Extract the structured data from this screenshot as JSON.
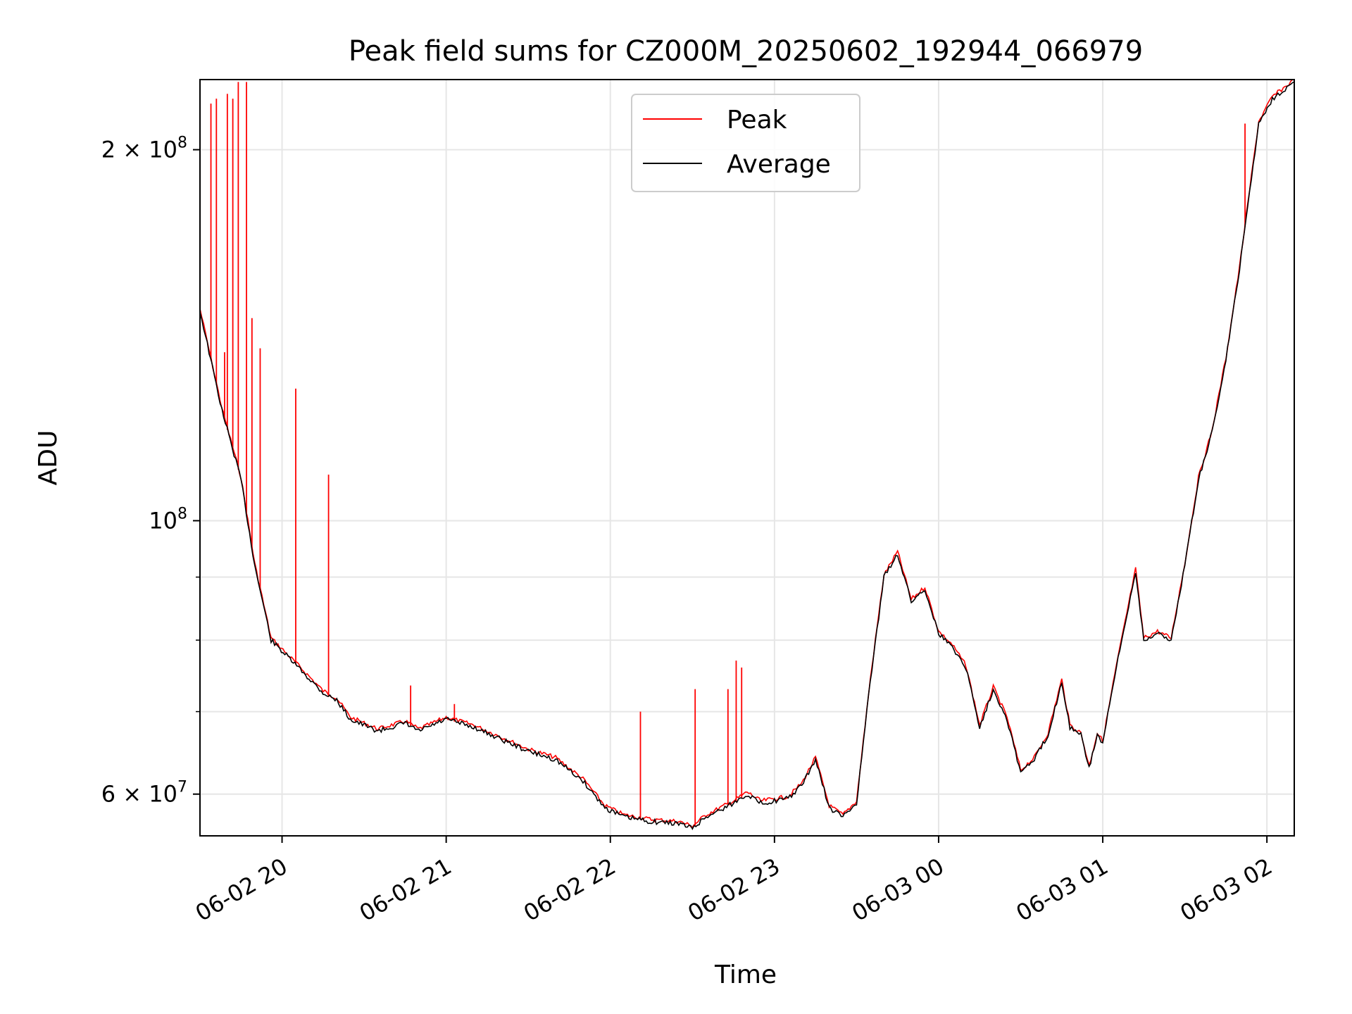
{
  "chart_data": {
    "type": "line",
    "title": "Peak field sums for CZ000M_20250602_192944_066979",
    "xlabel": "Time",
    "ylabel": "ADU",
    "y_scale": "log",
    "ylim": [
      55500000,
      228000000
    ],
    "xlim": [
      "2025-06-02 19:30",
      "2025-06-03 02:10"
    ],
    "grid": true,
    "legend_position": "upper-center",
    "x_ticks": [
      {
        "t": "2025-06-02 20:00",
        "label": "06-02 20"
      },
      {
        "t": "2025-06-02 21:00",
        "label": "06-02 21"
      },
      {
        "t": "2025-06-02 22:00",
        "label": "06-02 22"
      },
      {
        "t": "2025-06-02 23:00",
        "label": "06-02 23"
      },
      {
        "t": "2025-06-03 00:00",
        "label": "06-03 00"
      },
      {
        "t": "2025-06-03 01:00",
        "label": "06-03 01"
      },
      {
        "t": "2025-06-03 02:00",
        "label": "06-03 02"
      }
    ],
    "y_ticks_major": [
      {
        "value": 60000000,
        "base": "6",
        "exp": "7"
      },
      {
        "value": 100000000,
        "base": "",
        "exp": "8"
      },
      {
        "value": 200000000,
        "base": "2",
        "exp": "8"
      }
    ],
    "y_ticks_minor": [
      70000000,
      80000000,
      90000000
    ],
    "series": [
      {
        "name": "Average",
        "color": "#000000",
        "points": [
          [
            "2025-06-02 19:30",
            148000000
          ],
          [
            "2025-06-02 19:38",
            123000000
          ],
          [
            "2025-06-02 19:45",
            108000000
          ],
          [
            "2025-06-02 19:50",
            92000000
          ],
          [
            "2025-06-02 19:56",
            80000000
          ],
          [
            "2025-06-02 20:06",
            76000000
          ],
          [
            "2025-06-02 20:15",
            72500000
          ],
          [
            "2025-06-02 20:20",
            71500000
          ],
          [
            "2025-06-02 20:25",
            69000000
          ],
          [
            "2025-06-02 20:35",
            67500000
          ],
          [
            "2025-06-02 20:45",
            68500000
          ],
          [
            "2025-06-02 20:50",
            67500000
          ],
          [
            "2025-06-02 21:00",
            69000000
          ],
          [
            "2025-06-02 21:10",
            68000000
          ],
          [
            "2025-06-02 21:20",
            66500000
          ],
          [
            "2025-06-02 21:30",
            65000000
          ],
          [
            "2025-06-02 21:40",
            64000000
          ],
          [
            "2025-06-02 21:50",
            61500000
          ],
          [
            "2025-06-02 21:58",
            58500000
          ],
          [
            "2025-06-02 22:05",
            57500000
          ],
          [
            "2025-06-02 22:15",
            57000000
          ],
          [
            "2025-06-02 22:25",
            56800000
          ],
          [
            "2025-06-02 22:30",
            56300000
          ],
          [
            "2025-06-02 22:35",
            57500000
          ],
          [
            "2025-06-02 22:45",
            59000000
          ],
          [
            "2025-06-02 22:50",
            60000000
          ],
          [
            "2025-06-02 22:55",
            59000000
          ],
          [
            "2025-06-02 23:05",
            59500000
          ],
          [
            "2025-06-02 23:10",
            61000000
          ],
          [
            "2025-06-02 23:15",
            64000000
          ],
          [
            "2025-06-02 23:20",
            58500000
          ],
          [
            "2025-06-02 23:25",
            57500000
          ],
          [
            "2025-06-02 23:30",
            59000000
          ],
          [
            "2025-06-02 23:35",
            74000000
          ],
          [
            "2025-06-02 23:40",
            90000000
          ],
          [
            "2025-06-02 23:45",
            94000000
          ],
          [
            "2025-06-02 23:50",
            86000000
          ],
          [
            "2025-06-02 23:55",
            88000000
          ],
          [
            "2025-06-03 00:00",
            81000000
          ],
          [
            "2025-06-03 00:05",
            79000000
          ],
          [
            "2025-06-03 00:10",
            76000000
          ],
          [
            "2025-06-03 00:15",
            68000000
          ],
          [
            "2025-06-03 00:20",
            73000000
          ],
          [
            "2025-06-03 00:25",
            69000000
          ],
          [
            "2025-06-03 00:30",
            62500000
          ],
          [
            "2025-06-03 00:35",
            64000000
          ],
          [
            "2025-06-03 00:40",
            67000000
          ],
          [
            "2025-06-03 00:45",
            74000000
          ],
          [
            "2025-06-03 00:48",
            68000000
          ],
          [
            "2025-06-03 00:52",
            67000000
          ],
          [
            "2025-06-03 00:55",
            63000000
          ],
          [
            "2025-06-03 00:58",
            67000000
          ],
          [
            "2025-06-03 01:00",
            66000000
          ],
          [
            "2025-06-03 01:05",
            76000000
          ],
          [
            "2025-06-03 01:12",
            91000000
          ],
          [
            "2025-06-03 01:15",
            80000000
          ],
          [
            "2025-06-03 01:20",
            81000000
          ],
          [
            "2025-06-03 01:25",
            80000000
          ],
          [
            "2025-06-03 01:30",
            92000000
          ],
          [
            "2025-06-03 01:35",
            108000000
          ],
          [
            "2025-06-03 01:40",
            118000000
          ],
          [
            "2025-06-03 01:45",
            135000000
          ],
          [
            "2025-06-03 01:50",
            160000000
          ],
          [
            "2025-06-03 01:53",
            180000000
          ],
          [
            "2025-06-03 01:57",
            210000000
          ],
          [
            "2025-06-03 02:02",
            220000000
          ],
          [
            "2025-06-03 02:10",
            227000000
          ]
        ]
      },
      {
        "name": "Peak",
        "color": "#ff0000",
        "spikes": [
          [
            "2025-06-02 19:30",
            208000000
          ],
          [
            "2025-06-02 19:34",
            218000000
          ],
          [
            "2025-06-02 19:36",
            220000000
          ],
          [
            "2025-06-02 19:39",
            137000000
          ],
          [
            "2025-06-02 19:40",
            222000000
          ],
          [
            "2025-06-02 19:42",
            220000000
          ],
          [
            "2025-06-02 19:44",
            227000000
          ],
          [
            "2025-06-02 19:47",
            227000000
          ],
          [
            "2025-06-02 19:49",
            146000000
          ],
          [
            "2025-06-02 19:52",
            138000000
          ],
          [
            "2025-06-02 20:05",
            128000000
          ],
          [
            "2025-06-02 20:17",
            109000000
          ],
          [
            "2025-06-02 20:47",
            73500000
          ],
          [
            "2025-06-02 21:03",
            71000000
          ],
          [
            "2025-06-02 22:11",
            70000000
          ],
          [
            "2025-06-02 22:31",
            73000000
          ],
          [
            "2025-06-02 22:43",
            73000000
          ],
          [
            "2025-06-02 22:46",
            77000000
          ],
          [
            "2025-06-02 22:48",
            76000000
          ],
          [
            "2025-06-03 01:52",
            210000000
          ]
        ]
      }
    ]
  },
  "legend": {
    "items": [
      {
        "label": "Peak",
        "color": "#ff0000"
      },
      {
        "label": "Average",
        "color": "#000000"
      }
    ]
  }
}
